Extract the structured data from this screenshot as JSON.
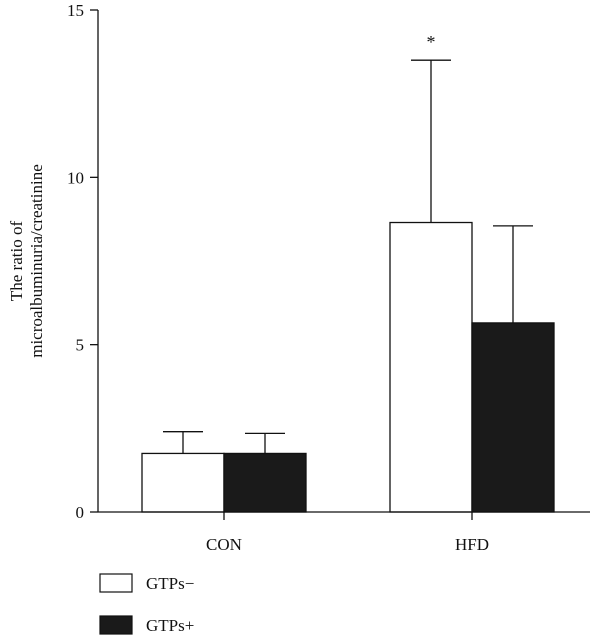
{
  "chart_data": {
    "type": "bar",
    "ylabel_lines": [
      "The ratio of",
      "microalbuminuria/creatinine"
    ],
    "categories": [
      "CON",
      "HFD"
    ],
    "ylim": [
      0,
      15
    ],
    "yticks": [
      0,
      5,
      10,
      15
    ],
    "ytick_labels": [
      "0",
      "5",
      "10",
      "15"
    ],
    "grid": false,
    "legend_position": "bottom-left",
    "series": [
      {
        "name": "GTPs−",
        "values": [
          1.75,
          8.65
        ],
        "errors": [
          0.65,
          4.85
        ],
        "color": "#ffffff"
      },
      {
        "name": "GTPs+",
        "values": [
          1.75,
          5.65
        ],
        "errors": [
          0.6,
          2.9
        ],
        "color": "#1a1a1a"
      }
    ],
    "annotations": [
      {
        "text": "*",
        "category": "HFD",
        "series": "GTPs−"
      }
    ]
  }
}
